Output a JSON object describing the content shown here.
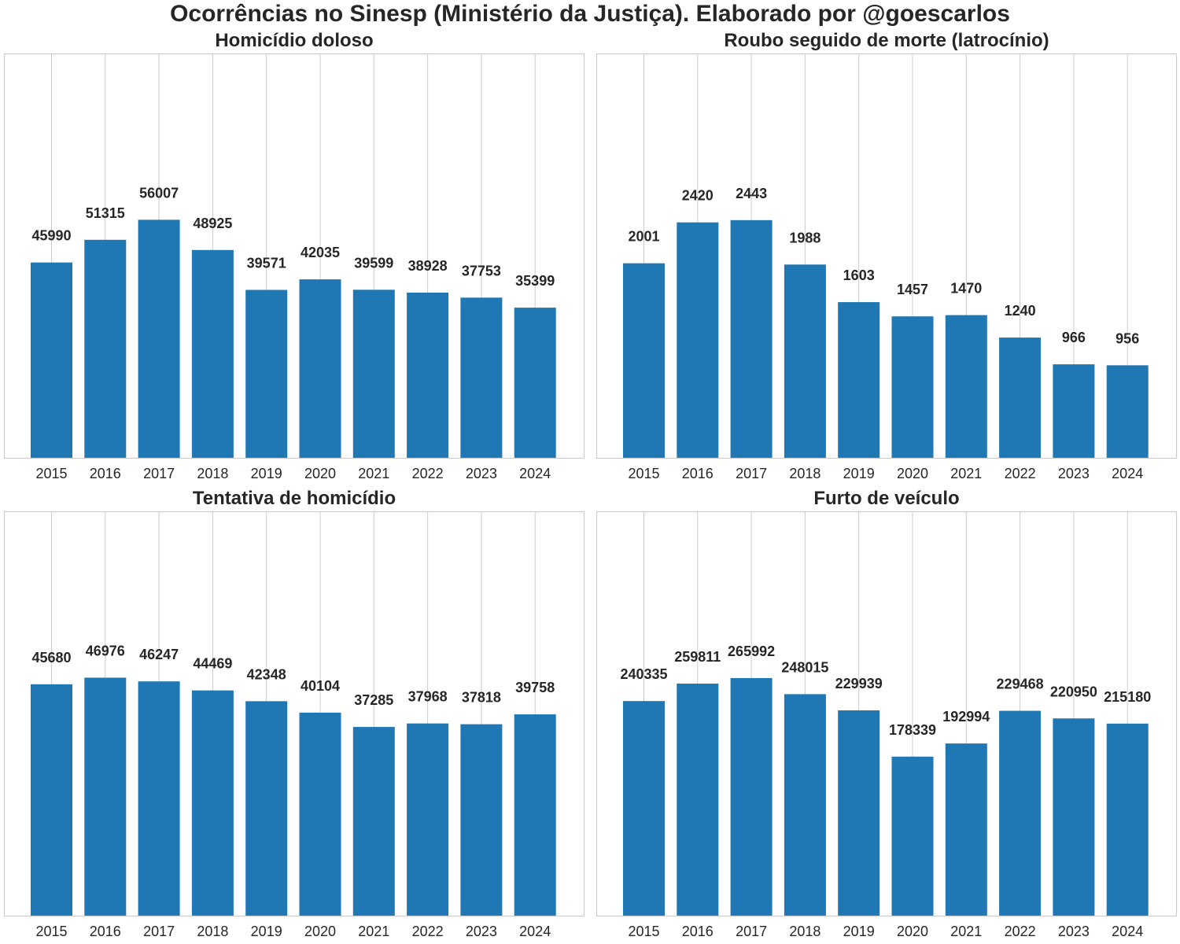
{
  "suptitle": "Ocorrências no Sinesp (Ministério da Justiça). Elaborado por @goescarlos",
  "colors": {
    "bar": "#1f77b4",
    "grid": "#cccccc",
    "frame": "#cccccc",
    "text": "#262626"
  },
  "chart_data": [
    {
      "type": "bar",
      "title": "Homicídio doloso",
      "categories": [
        "2015",
        "2016",
        "2017",
        "2018",
        "2019",
        "2020",
        "2021",
        "2022",
        "2023",
        "2024"
      ],
      "values": [
        45990,
        51315,
        56007,
        48925,
        39571,
        42035,
        39599,
        38928,
        37753,
        35399
      ],
      "labels": [
        "45990",
        "51315",
        "56007",
        "48925",
        "39571",
        "42035",
        "39599",
        "38928",
        "37753",
        "35399"
      ],
      "xlabel": "",
      "ylabel": "",
      "ylim": [
        0,
        95000
      ],
      "grid": "vertical",
      "yticks_visible": false
    },
    {
      "type": "bar",
      "title": "Roubo seguido de morte (latrocínio)",
      "categories": [
        "2015",
        "2016",
        "2017",
        "2018",
        "2019",
        "2020",
        "2021",
        "2022",
        "2023",
        "2024"
      ],
      "values": [
        2001,
        2420,
        2443,
        1988,
        1603,
        1457,
        1470,
        1240,
        966,
        956
      ],
      "labels": [
        "2001",
        "2420",
        "2443",
        "1988",
        "1603",
        "1457",
        "1470",
        "1240",
        "966",
        "956"
      ],
      "xlabel": "",
      "ylabel": "",
      "ylim": [
        0,
        4150
      ],
      "grid": "vertical",
      "yticks_visible": false
    },
    {
      "type": "bar",
      "title": "Tentativa de homicídio",
      "categories": [
        "2015",
        "2016",
        "2017",
        "2018",
        "2019",
        "2020",
        "2021",
        "2022",
        "2023",
        "2024"
      ],
      "values": [
        45680,
        46976,
        46247,
        44469,
        42348,
        40104,
        37285,
        37968,
        37818,
        39758
      ],
      "labels": [
        "45680",
        "46976",
        "46247",
        "44469",
        "42348",
        "40104",
        "37285",
        "37968",
        "37818",
        "39758"
      ],
      "xlabel": "",
      "ylabel": "",
      "ylim": [
        0,
        79700
      ],
      "grid": "vertical",
      "yticks_visible": false
    },
    {
      "type": "bar",
      "title": "Furto de veículo",
      "categories": [
        "2015",
        "2016",
        "2017",
        "2018",
        "2019",
        "2020",
        "2021",
        "2022",
        "2023",
        "2024"
      ],
      "values": [
        240335,
        259811,
        265992,
        248015,
        229939,
        178339,
        192994,
        229468,
        220950,
        215180
      ],
      "labels": [
        "240335",
        "259811",
        "265992",
        "248015",
        "229939",
        "178339",
        "192994",
        "229468",
        "220950",
        "215180"
      ],
      "xlabel": "",
      "ylabel": "",
      "ylim": [
        0,
        452000
      ],
      "grid": "vertical",
      "yticks_visible": false
    }
  ]
}
